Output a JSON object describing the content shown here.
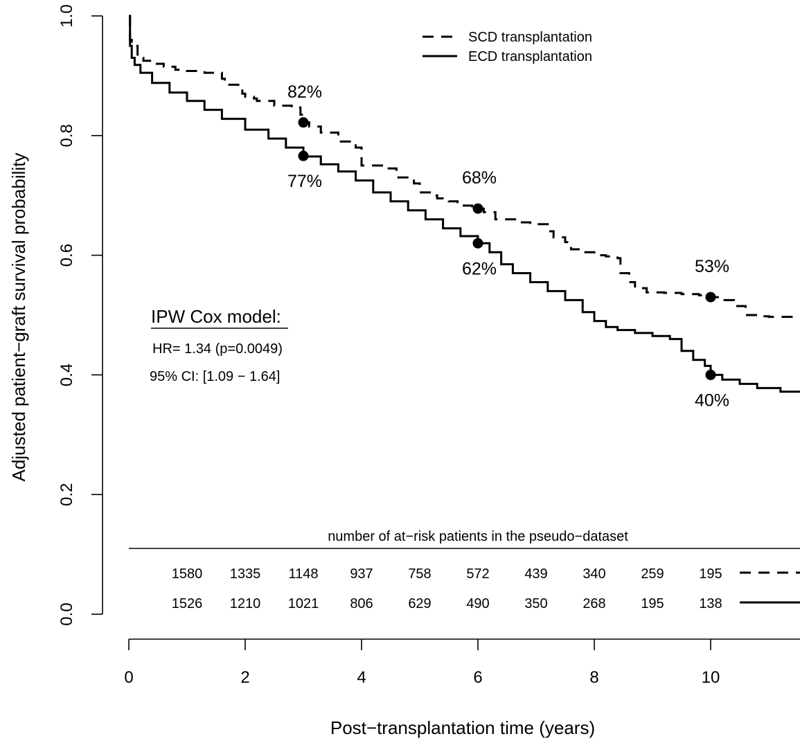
{
  "chart_data": {
    "type": "line",
    "xlabel": "Post−transplantation time  (years)",
    "ylabel": "Adjusted patient−graft survival probability",
    "xlim": [
      0,
      11.6
    ],
    "ylim": [
      0,
      1.0
    ],
    "x_ticks": [
      "0",
      "2",
      "4",
      "6",
      "8",
      "10"
    ],
    "x_tick_values": [
      0,
      2,
      4,
      6,
      8,
      10
    ],
    "y_ticks": [
      "0.0",
      "0.2",
      "0.4",
      "0.6",
      "0.8",
      "1.0"
    ],
    "y_tick_values": [
      0,
      0.2,
      0.4,
      0.6,
      0.8,
      1.0
    ],
    "legend": {
      "position": "top-right",
      "entries": [
        {
          "label": "SCD transplantation",
          "style": "dashed"
        },
        {
          "label": "ECD transplantation",
          "style": "solid"
        }
      ]
    },
    "series": [
      {
        "name": "SCD transplantation",
        "style": "dashed",
        "x": [
          0,
          0.02,
          0.05,
          0.1,
          0.15,
          0.25,
          0.4,
          0.6,
          0.8,
          1.0,
          1.3,
          1.6,
          1.65,
          1.9,
          1.95,
          2.0,
          2.15,
          2.2,
          2.5,
          2.8,
          2.95,
          3.0,
          3.1,
          3.3,
          3.6,
          3.9,
          4.0,
          4.4,
          4.6,
          4.9,
          5.0,
          5.2,
          5.3,
          5.5,
          5.65,
          5.9,
          6.0,
          6.1,
          6.3,
          6.7,
          6.9,
          7.2,
          7.3,
          7.5,
          7.6,
          7.8,
          8.0,
          8.2,
          8.4,
          8.45,
          8.6,
          8.7,
          8.9,
          9.2,
          9.5,
          9.8,
          10.0,
          10.2,
          10.4,
          10.6,
          10.8,
          11.0,
          11.6
        ],
        "y": [
          1.0,
          0.96,
          0.955,
          0.95,
          0.93,
          0.925,
          0.92,
          0.915,
          0.91,
          0.908,
          0.905,
          0.895,
          0.885,
          0.88,
          0.87,
          0.865,
          0.862,
          0.858,
          0.85,
          0.847,
          0.835,
          0.822,
          0.815,
          0.805,
          0.79,
          0.78,
          0.75,
          0.745,
          0.73,
          0.72,
          0.705,
          0.7,
          0.695,
          0.69,
          0.683,
          0.68,
          0.678,
          0.672,
          0.66,
          0.655,
          0.652,
          0.64,
          0.63,
          0.622,
          0.61,
          0.605,
          0.6,
          0.598,
          0.595,
          0.57,
          0.555,
          0.545,
          0.538,
          0.537,
          0.535,
          0.533,
          0.53,
          0.525,
          0.515,
          0.5,
          0.498,
          0.497,
          0.495
        ]
      },
      {
        "name": "ECD transplantation",
        "style": "solid",
        "x": [
          0,
          0.02,
          0.05,
          0.1,
          0.2,
          0.4,
          0.7,
          1.0,
          1.3,
          1.6,
          2.0,
          2.4,
          2.7,
          3.0,
          3.3,
          3.6,
          3.9,
          4.2,
          4.5,
          4.8,
          5.1,
          5.4,
          5.7,
          6.0,
          6.2,
          6.4,
          6.6,
          6.9,
          7.2,
          7.5,
          7.8,
          8.0,
          8.2,
          8.4,
          8.7,
          9.0,
          9.3,
          9.5,
          9.7,
          9.9,
          10.0,
          10.2,
          10.5,
          10.8,
          11.2,
          11.6
        ],
        "y": [
          1.0,
          0.95,
          0.93,
          0.918,
          0.905,
          0.888,
          0.872,
          0.858,
          0.843,
          0.828,
          0.81,
          0.795,
          0.78,
          0.765,
          0.752,
          0.74,
          0.725,
          0.705,
          0.69,
          0.675,
          0.66,
          0.645,
          0.632,
          0.62,
          0.605,
          0.585,
          0.57,
          0.555,
          0.54,
          0.525,
          0.505,
          0.49,
          0.48,
          0.475,
          0.47,
          0.465,
          0.46,
          0.44,
          0.425,
          0.415,
          0.4,
          0.392,
          0.385,
          0.378,
          0.372,
          0.362
        ]
      }
    ],
    "highlighted_points": [
      {
        "series": "SCD transplantation",
        "x": 3,
        "y": 0.822,
        "label": "82%",
        "label_pos": "above"
      },
      {
        "series": "ECD transplantation",
        "x": 3,
        "y": 0.766,
        "label": "77%",
        "label_pos": "below"
      },
      {
        "series": "SCD transplantation",
        "x": 6,
        "y": 0.678,
        "label": "68%",
        "label_pos": "above"
      },
      {
        "series": "ECD transplantation",
        "x": 6,
        "y": 0.62,
        "label": "62%",
        "label_pos": "below"
      },
      {
        "series": "SCD transplantation",
        "x": 10,
        "y": 0.53,
        "label": "53%",
        "label_pos": "above"
      },
      {
        "series": "ECD transplantation",
        "x": 10,
        "y": 0.4,
        "label": "40%",
        "label_pos": "below"
      }
    ],
    "annotations": {
      "model_title": "IPW Cox model:",
      "hr_text": "HR= 1.34 (p=0.0049)",
      "ci_text": "95% CI: [1.09 − 1.64]"
    },
    "at_risk": {
      "title": "number of at−risk patients in the pseudo−dataset",
      "times": [
        1,
        2,
        3,
        4,
        5,
        6,
        7,
        8,
        9,
        10
      ],
      "SCD": [
        "1580",
        "1335",
        "1148",
        "937",
        "758",
        "572",
        "439",
        "340",
        "259",
        "195"
      ],
      "ECD": [
        "1526",
        "1210",
        "1021",
        "806",
        "629",
        "490",
        "350",
        "268",
        "195",
        "138"
      ]
    }
  }
}
